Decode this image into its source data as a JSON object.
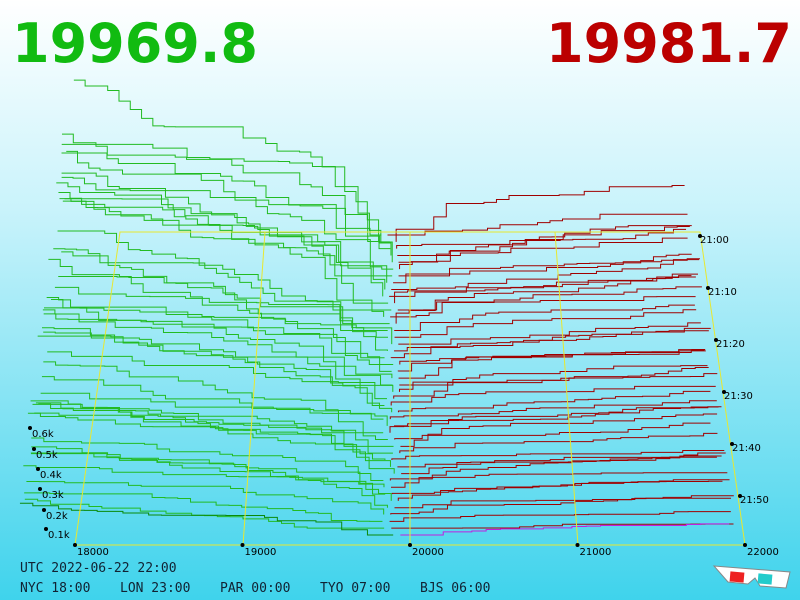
{
  "header": {
    "bid": "19969.8",
    "ask": "19981.7"
  },
  "price_axis": [
    "18000",
    "19000",
    "20000",
    "21000",
    "22000"
  ],
  "depth_axis": [
    "0.6k",
    "0.5k",
    "0.4k",
    "0.3k",
    "0.2k",
    "0.1k"
  ],
  "time_axis": [
    "21:00",
    "21:10",
    "21:20",
    "21:30",
    "21:40",
    "21:50"
  ],
  "footer": {
    "utc": "UTC 2022-06-22 22:00",
    "zones": [
      "NYC 18:00",
      "LON 23:00",
      "PAR 00:00",
      "TYO 07:00",
      "BJS 06:00"
    ]
  }
}
